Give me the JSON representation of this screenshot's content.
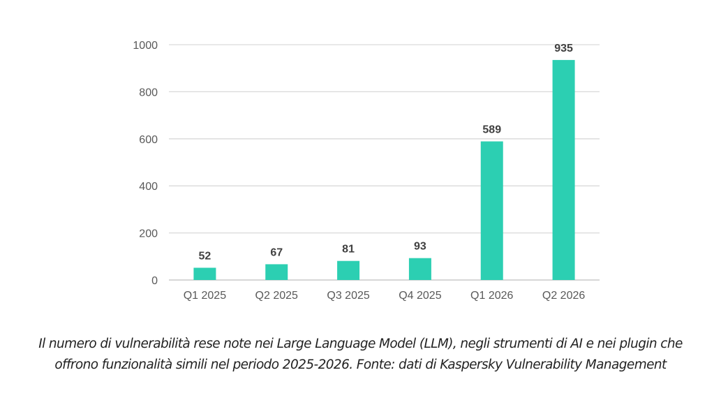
{
  "chart_data": {
    "type": "bar",
    "categories": [
      "Q1 2025",
      "Q2 2025",
      "Q3 2025",
      "Q4 2025",
      "Q1 2026",
      "Q2 2026"
    ],
    "values": [
      52,
      67,
      81,
      93,
      589,
      935
    ],
    "data_labels": [
      "52",
      "67",
      "81",
      "93",
      "589",
      "935"
    ],
    "y_ticks": [
      "0",
      "200",
      "400",
      "600",
      "800",
      "1000"
    ],
    "ylim": [
      0,
      1000
    ],
    "grid": true,
    "legend": "none",
    "bar_color": "#2ccfb2",
    "grid_color": "#d9d9d9"
  },
  "caption": "Il numero di vulnerabilità rese note nei Large Language Model (LLM), negli strumenti di AI e nei plugin che offrono funzionalità simili nel periodo 2025-2026. Fonte: dati di Kaspersky Vulnerability Management"
}
